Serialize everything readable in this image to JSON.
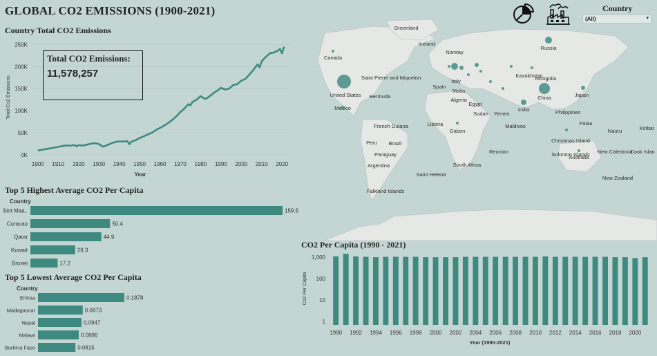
{
  "dashboard": {
    "title": "GLOBAL CO2 EMISSIONS (1900-2021)",
    "pie_icon": "pie-chart-icon",
    "factory_icon": "factory-icon",
    "filter": {
      "label": "Country",
      "value": "(All)"
    }
  },
  "kpi": {
    "label": "Total CO2 Emissions:",
    "value": "11,578,257"
  },
  "map": {
    "labels": [
      "Greenland",
      "Iceland",
      "Canada",
      "Norway",
      "Russia",
      "Saint Pierre and Miquelon",
      "United States",
      "Kazakhstan",
      "Mongolia",
      "Spain",
      "Italy",
      "Malta",
      "Bermuda",
      "China",
      "Japan",
      "Algeria",
      "Egypt",
      "Mexico",
      "India",
      "Philippines",
      "Sudan",
      "Yemen",
      "Liberia",
      "Palau",
      "Gabon",
      "Maldives",
      "Nauru",
      "Kiribat",
      "French Guiana",
      "Peru",
      "Brazil",
      "Christmas Island",
      "Reunion",
      "Paraguay",
      "Solomon Islands",
      "New Caledonia",
      "Cook Islan",
      "South Africa",
      "Australia",
      "Argentina",
      "Saint Helena",
      "New Zealand",
      "Falkland Islands"
    ]
  },
  "chart_data": [
    {
      "type": "line",
      "title": "Country Total CO2 Emissions",
      "xlabel": "Year",
      "ylabel": "Total Co2 Emissions",
      "xlim": [
        1897,
        2024
      ],
      "ylim": [
        0,
        260000
      ],
      "x_ticks": [
        1900,
        1910,
        1920,
        1930,
        1940,
        1950,
        1960,
        1970,
        1980,
        1990,
        2000,
        2010,
        2020
      ],
      "y_ticks": [
        0,
        50000,
        100000,
        150000,
        200000,
        250000
      ],
      "y_tick_labels": [
        "0K",
        "50K",
        "100K",
        "150K",
        "200K",
        "250K"
      ],
      "color": "#3f8a80",
      "x": [
        1900,
        1902,
        1904,
        1906,
        1908,
        1910,
        1912,
        1914,
        1916,
        1918,
        1919,
        1920,
        1922,
        1924,
        1926,
        1928,
        1930,
        1932,
        1934,
        1936,
        1938,
        1940,
        1942,
        1944,
        1945,
        1946,
        1948,
        1950,
        1952,
        1954,
        1956,
        1958,
        1960,
        1962,
        1964,
        1966,
        1968,
        1970,
        1972,
        1974,
        1975,
        1976,
        1978,
        1980,
        1982,
        1983,
        1985,
        1987,
        1989,
        1990,
        1992,
        1994,
        1996,
        1998,
        2000,
        2002,
        2004,
        2006,
        2008,
        2009,
        2010,
        2012,
        2014,
        2016,
        2018,
        2019,
        2020,
        2021
      ],
      "y": [
        10000,
        11500,
        13000,
        14500,
        16500,
        18000,
        20000,
        21500,
        20500,
        22500,
        19000,
        22000,
        21000,
        23000,
        25000,
        26500,
        24500,
        18500,
        22000,
        26000,
        29000,
        30500,
        30000,
        31000,
        24000,
        30000,
        33000,
        38000,
        42000,
        46000,
        50000,
        56000,
        61000,
        66000,
        72000,
        79000,
        87000,
        97000,
        105000,
        115000,
        112000,
        120000,
        125000,
        133000,
        127000,
        128000,
        135000,
        142000,
        148000,
        152000,
        148000,
        150000,
        158000,
        160000,
        168000,
        172000,
        182000,
        193000,
        205000,
        198000,
        212000,
        222000,
        230000,
        232000,
        236000,
        240000,
        230000,
        245000
      ]
    },
    {
      "type": "bar",
      "title": "Top 5 Highest Average CO2 Per Capita",
      "axis_header": "Country",
      "categories": [
        "Sint Maa..",
        "Curacao",
        "Qatar",
        "Kuwait",
        "Brunei"
      ],
      "values": [
        159.5,
        50.4,
        44.9,
        28.3,
        17.2
      ],
      "value_labels": [
        "159.5",
        "50.4",
        "44.9",
        "28.3",
        "17.2"
      ],
      "xlim": [
        0,
        159.5
      ],
      "color": "#3f8a80"
    },
    {
      "type": "bar",
      "title": "Top 5 Lowest Average CO2 Per Capita",
      "axis_header": "Country",
      "categories": [
        "Eritrea",
        "Madagascar",
        "Nepal",
        "Malawi",
        "Burkina Faso"
      ],
      "values": [
        0.1878,
        0.0973,
        0.0947,
        0.0886,
        0.0815
      ],
      "value_labels": [
        "0.1878",
        "0.0973",
        "0.0947",
        "0.0886",
        "0.0815"
      ],
      "xlim": [
        0,
        0.1878
      ],
      "color": "#3f8a80"
    },
    {
      "type": "bar",
      "title": "CO2 Per Capita (1990 - 2021)",
      "xlabel": "Year (1990-2021)",
      "ylabel": "Co2 Per Capita",
      "scale": "log",
      "ylim": [
        0.7,
        1700
      ],
      "y_ticks": [
        1,
        10,
        100,
        1000
      ],
      "y_tick_labels": [
        "1",
        "10",
        "100",
        "1,000"
      ],
      "x_tick_labels": [
        "1990",
        "1992",
        "1994",
        "1996",
        "1998",
        "2000",
        "2002",
        "2004",
        "2006",
        "2008",
        "2010",
        "2012",
        "2014",
        "2016",
        "2018",
        "2020"
      ],
      "categories": [
        "1990",
        "1991",
        "1992",
        "1993",
        "1994",
        "1995",
        "1996",
        "1997",
        "1998",
        "1999",
        "2000",
        "2001",
        "2002",
        "2003",
        "2004",
        "2005",
        "2006",
        "2007",
        "2008",
        "2009",
        "2010",
        "2011",
        "2012",
        "2013",
        "2014",
        "2015",
        "2016",
        "2017",
        "2018",
        "2019",
        "2020",
        "2021"
      ],
      "values": [
        1100,
        1450,
        1100,
        1050,
        1000,
        1050,
        1050,
        1050,
        1050,
        1000,
        1000,
        1000,
        1000,
        1050,
        1050,
        1050,
        1050,
        1050,
        1050,
        1050,
        1050,
        1100,
        1050,
        1050,
        1050,
        1050,
        1050,
        1050,
        1000,
        1000,
        920,
        1000
      ],
      "color": "#3f8a80"
    }
  ]
}
